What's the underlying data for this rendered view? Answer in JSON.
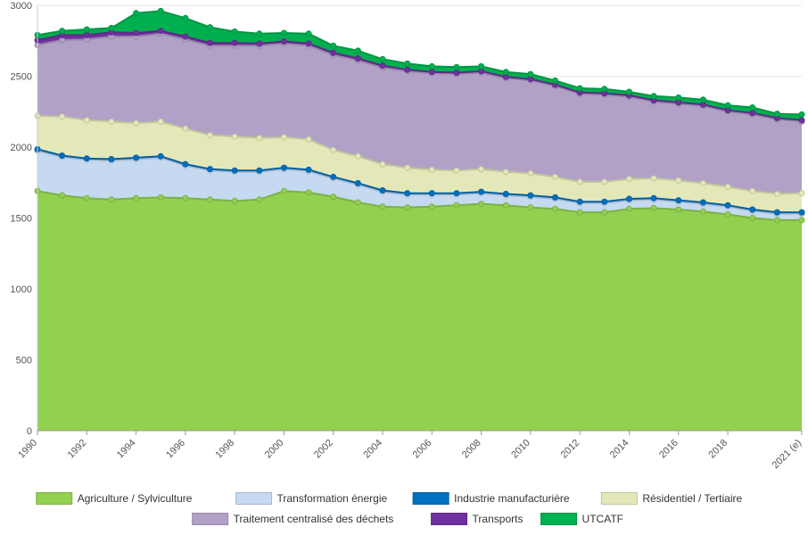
{
  "chart_data": {
    "type": "area",
    "stacked": true,
    "categories": [
      "1990",
      "1991",
      "1992",
      "1993",
      "1994",
      "1995",
      "1996",
      "1997",
      "1998",
      "1999",
      "2000",
      "2001",
      "2002",
      "2003",
      "2004",
      "2005",
      "2006",
      "2007",
      "2008",
      "2009",
      "2010",
      "2011",
      "2012",
      "2013",
      "2014",
      "2015",
      "2016",
      "2017",
      "2018",
      "2019",
      "2020",
      "2021 (e)"
    ],
    "x_tick_labels": [
      "1990",
      "1992",
      "1994",
      "1996",
      "1998",
      "2000",
      "2002",
      "2004",
      "2006",
      "2008",
      "2010",
      "2012",
      "2014",
      "2016",
      "2018",
      "2021 (e)"
    ],
    "ylim": [
      0,
      3000
    ],
    "y_ticks": [
      0,
      500,
      1000,
      1500,
      2000,
      2500,
      3000
    ],
    "grid": true,
    "legend_position": "bottom",
    "series": [
      {
        "name": "Agriculture / Sylviculture",
        "color": "#92d050",
        "values": [
          1690,
          1660,
          1640,
          1630,
          1640,
          1645,
          1640,
          1630,
          1620,
          1630,
          1690,
          1680,
          1650,
          1610,
          1580,
          1575,
          1580,
          1590,
          1600,
          1590,
          1575,
          1565,
          1540,
          1540,
          1565,
          1570,
          1560,
          1545,
          1525,
          1500,
          1485,
          1485
        ]
      },
      {
        "name": "Transformation énergie",
        "color": "#c5d9f1",
        "values": [
          285,
          270,
          270,
          275,
          275,
          280,
          230,
          205,
          205,
          195,
          155,
          150,
          130,
          125,
          105,
          90,
          85,
          75,
          75,
          70,
          75,
          70,
          65,
          65,
          60,
          60,
          55,
          55,
          55,
          50,
          45,
          45
        ]
      },
      {
        "name": "Industrie manufacturière",
        "color": "#0070c0",
        "values": [
          10,
          10,
          10,
          10,
          10,
          10,
          10,
          10,
          10,
          10,
          10,
          10,
          10,
          10,
          10,
          10,
          10,
          10,
          10,
          10,
          10,
          10,
          10,
          10,
          10,
          10,
          10,
          10,
          10,
          10,
          10,
          10
        ]
      },
      {
        "name": "Résidentiel / Tertiaire",
        "color": "#e4e8b8",
        "values": [
          235,
          275,
          270,
          265,
          245,
          245,
          250,
          240,
          240,
          230,
          215,
          215,
          190,
          190,
          185,
          180,
          165,
          160,
          160,
          155,
          155,
          145,
          140,
          140,
          140,
          140,
          140,
          135,
          130,
          130,
          130,
          135
        ]
      },
      {
        "name": "Traitement centralisé des déchets",
        "color": "#b2a1c7",
        "values": [
          500,
          540,
          570,
          600,
          610,
          620,
          630,
          630,
          640,
          650,
          660,
          660,
          670,
          675,
          680,
          680,
          680,
          680,
          680,
          660,
          655,
          640,
          620,
          615,
          580,
          540,
          540,
          545,
          530,
          540,
          525,
          505
        ]
      },
      {
        "name": "Transports",
        "color": "#7030a0",
        "values": [
          35,
          35,
          30,
          30,
          25,
          20,
          20,
          20,
          20,
          15,
          15,
          15,
          15,
          15,
          15,
          10,
          10,
          10,
          10,
          10,
          10,
          10,
          10,
          10,
          10,
          10,
          10,
          10,
          10,
          10,
          10,
          10
        ]
      },
      {
        "name": "UTCATF",
        "color": "#00b050",
        "values": [
          35,
          30,
          40,
          30,
          140,
          140,
          130,
          110,
          80,
          70,
          60,
          70,
          50,
          55,
          45,
          45,
          40,
          40,
          35,
          35,
          35,
          30,
          30,
          30,
          25,
          30,
          35,
          35,
          35,
          40,
          30,
          40
        ]
      }
    ]
  }
}
